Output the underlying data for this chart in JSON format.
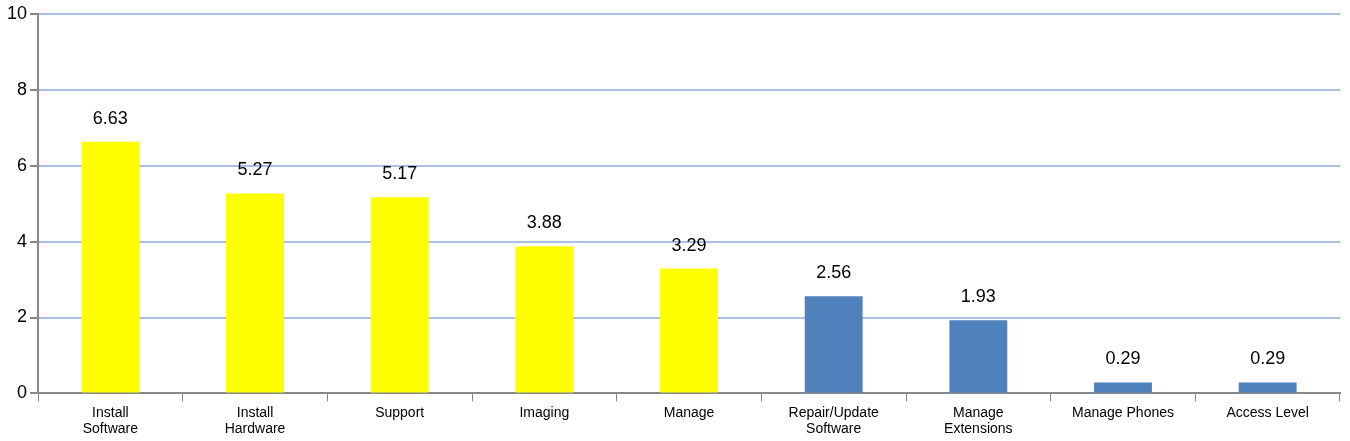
{
  "chart_data": {
    "type": "bar",
    "categories": [
      "Install Software",
      "Install Hardware",
      "Support",
      "Imaging",
      "Manage",
      "Repair/Update Software",
      "Manage Extensions",
      "Manage Phones",
      "Access Level"
    ],
    "values": [
      6.63,
      5.27,
      5.17,
      3.88,
      3.29,
      2.56,
      1.93,
      0.29,
      0.29
    ],
    "colors": [
      "#ffff00",
      "#ffff00",
      "#ffff00",
      "#ffff00",
      "#ffff00",
      "#4f81bd",
      "#4f81bd",
      "#4f81bd",
      "#4f81bd"
    ],
    "ylim": [
      0,
      10
    ],
    "yticks": [
      0,
      2,
      4,
      6,
      8,
      10
    ],
    "grid": "y",
    "data_labels": true,
    "legend": false
  }
}
